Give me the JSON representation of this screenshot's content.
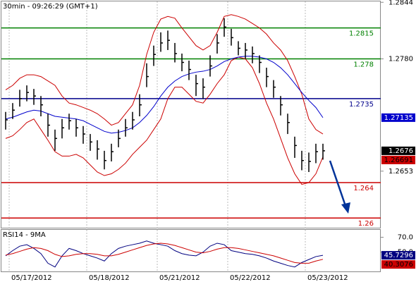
{
  "chart_data": [
    {
      "type": "hlc",
      "title": "30min - 09:26:29 (GMT+1)",
      "categories": [
        null,
        null,
        null,
        "05/17/2012",
        null,
        null,
        null,
        null,
        null,
        null,
        null,
        null,
        null,
        null,
        "05/18/2012",
        null,
        null,
        null,
        null,
        null,
        null,
        null,
        null,
        null,
        "05/21/2012",
        null,
        null,
        null,
        null,
        null,
        null,
        null,
        null,
        null,
        "05/22/2012",
        null,
        null,
        null,
        null,
        null,
        null,
        null,
        null,
        null,
        null,
        "05/23/2012"
      ],
      "high": [
        1.272,
        1.273,
        1.2745,
        1.275,
        1.2746,
        1.2738,
        1.2718,
        1.27,
        1.2712,
        1.2718,
        1.2712,
        1.2704,
        1.2695,
        1.2688,
        1.2676,
        1.2684,
        1.27,
        1.2712,
        1.272,
        1.274,
        1.2775,
        1.2795,
        1.281,
        1.2812,
        1.2798,
        1.2786,
        1.2778,
        1.2762,
        1.2758,
        1.2784,
        1.2808,
        1.2826,
        1.2814,
        1.28,
        1.2798,
        1.2794,
        1.2784,
        1.277,
        1.2756,
        1.2738,
        1.2718,
        1.2692,
        1.2676,
        1.2674,
        1.2684,
        1.2684
      ],
      "low": [
        1.27,
        1.2712,
        1.2726,
        1.2732,
        1.2728,
        1.2715,
        1.2692,
        1.2676,
        1.269,
        1.27,
        1.2692,
        1.2684,
        1.2676,
        1.2666,
        1.2655,
        1.2664,
        1.268,
        1.2692,
        1.27,
        1.2715,
        1.2748,
        1.2772,
        1.2788,
        1.279,
        1.2776,
        1.2766,
        1.2756,
        1.2738,
        1.2735,
        1.276,
        1.2786,
        1.2805,
        1.2795,
        1.2784,
        1.278,
        1.2775,
        1.2764,
        1.2748,
        1.2736,
        1.2716,
        1.2695,
        1.2668,
        1.2654,
        1.2652,
        1.2662,
        1.2666
      ],
      "close": [
        1.2711,
        1.2722,
        1.2735,
        1.2742,
        1.2738,
        1.2728,
        1.2705,
        1.269,
        1.2702,
        1.271,
        1.2702,
        1.2695,
        1.2686,
        1.2678,
        1.2665,
        1.2675,
        1.269,
        1.2702,
        1.2711,
        1.2728,
        1.276,
        1.2785,
        1.2798,
        1.2801,
        1.2786,
        1.2776,
        1.2768,
        1.2752,
        1.2748,
        1.2772,
        1.2798,
        1.2816,
        1.2804,
        1.2792,
        1.279,
        1.2786,
        1.2776,
        1.276,
        1.2748,
        1.2728,
        1.2708,
        1.2682,
        1.2665,
        1.2664,
        1.2675,
        1.2676
      ],
      "color": "#000000",
      "overlays": [
        {
          "color": "#cc0000",
          "values": [
            1.2745,
            1.275,
            1.2758,
            1.2762,
            1.2762,
            1.276,
            1.2755,
            1.275,
            1.2738,
            1.273,
            1.2728,
            1.2725,
            1.2722,
            1.2718,
            1.2712,
            1.2705,
            1.2708,
            1.2718,
            1.2728,
            1.275,
            1.2785,
            1.281,
            1.2825,
            1.2828,
            1.2826,
            1.2815,
            1.2805,
            1.2795,
            1.279,
            1.2795,
            1.281,
            1.2828,
            1.283,
            1.2828,
            1.2825,
            1.282,
            1.2815,
            1.2808,
            1.2798,
            1.279,
            1.2778,
            1.276,
            1.274,
            1.2712,
            1.27,
            1.2695
          ]
        },
        {
          "color": "#cc0000",
          "values": [
            1.269,
            1.2693,
            1.27,
            1.2708,
            1.2712,
            1.27,
            1.2688,
            1.2675,
            1.267,
            1.267,
            1.2672,
            1.2668,
            1.266,
            1.2652,
            1.2648,
            1.265,
            1.2655,
            1.2662,
            1.2672,
            1.268,
            1.2688,
            1.27,
            1.2712,
            1.2735,
            1.2748,
            1.2748,
            1.274,
            1.2732,
            1.273,
            1.274,
            1.2752,
            1.2762,
            1.2778,
            1.2782,
            1.278,
            1.277,
            1.2752,
            1.273,
            1.2712,
            1.269,
            1.2668,
            1.265,
            1.2638,
            1.264,
            1.265,
            1.26691
          ]
        },
        {
          "color": "#0000cc",
          "values": [
            1.2712,
            1.2714,
            1.2717,
            1.272,
            1.2722,
            1.2721,
            1.2718,
            1.2715,
            1.2714,
            1.2713,
            1.2712,
            1.271,
            1.2706,
            1.2702,
            1.2698,
            1.2696,
            1.2697,
            1.2699,
            1.2702,
            1.2708,
            1.2716,
            1.2726,
            1.2738,
            1.2748,
            1.2755,
            1.276,
            1.2763,
            1.2765,
            1.2766,
            1.2768,
            1.2772,
            1.2777,
            1.278,
            1.2782,
            1.2783,
            1.2783,
            1.2782,
            1.278,
            1.2776,
            1.277,
            1.2762,
            1.2752,
            1.2742,
            1.2733,
            1.2725,
            1.27135
          ]
        }
      ],
      "levels": [
        {
          "value": 1.2815,
          "color": "#008000"
        },
        {
          "value": 1.278,
          "color": "#008000"
        },
        {
          "value": 1.2735,
          "color": "#00008b"
        },
        {
          "value": 1.264,
          "color": "#cc0000"
        },
        {
          "value": 1.26,
          "color": "#cc0000"
        }
      ],
      "ylim": [
        1.2589,
        1.2845
      ],
      "yticks": [
        1.2844,
        {
          "value": 1.278,
          "label": "1.2780"
        },
        1.2653
      ]
    },
    {
      "type": "line",
      "title": "RSI14 - 9MA",
      "series": [
        {
          "color": "#000080",
          "values": [
            45,
            52,
            58,
            60,
            55,
            48,
            35,
            30,
            45,
            55,
            52,
            48,
            45,
            42,
            38,
            48,
            55,
            58,
            60,
            62,
            65,
            62,
            60,
            58,
            52,
            48,
            46,
            45,
            50,
            58,
            62,
            60,
            52,
            50,
            48,
            47,
            45,
            42,
            38,
            35,
            32,
            30,
            36,
            40,
            44,
            45.7296
          ]
        },
        {
          "color": "#cc0000",
          "values": [
            46,
            48,
            51,
            54,
            56,
            55,
            52,
            47,
            44,
            45,
            47,
            48,
            48,
            47,
            45,
            45,
            47,
            50,
            53,
            56,
            59,
            61,
            62,
            61,
            59,
            56,
            53,
            50,
            49,
            51,
            54,
            56,
            56,
            55,
            53,
            51,
            49,
            47,
            45,
            42,
            39,
            36,
            35,
            35,
            38,
            40.3076
          ]
        }
      ],
      "ylim": [
        24,
        80
      ],
      "yticks": [
        {
          "value": 70,
          "label": "70.0"
        },
        {
          "value": 50,
          "label": "50.0"
        }
      ]
    }
  ]
}
